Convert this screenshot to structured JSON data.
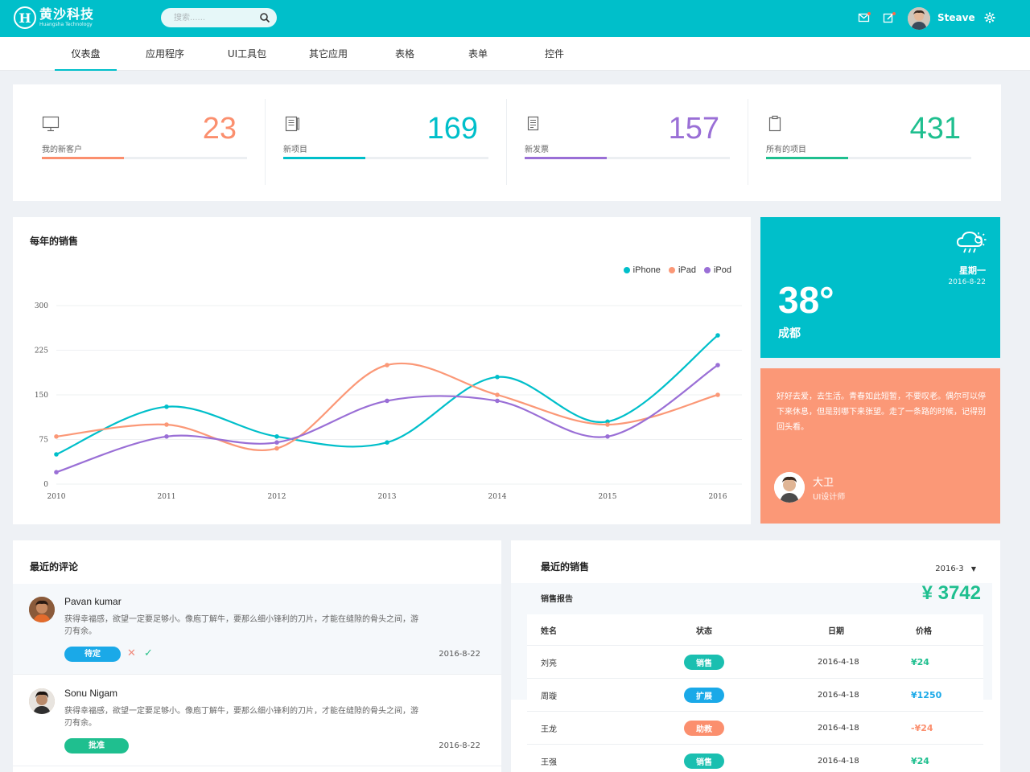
{
  "header": {
    "logo_mark": "H",
    "logo_title": "黄沙科技",
    "logo_sub": "Huangsha Technology",
    "search_placeholder": "搜索......",
    "username": "Steave"
  },
  "nav": {
    "items": [
      {
        "label": "仪表盘",
        "active": true
      },
      {
        "label": "应用程序"
      },
      {
        "label": "UI工具包"
      },
      {
        "label": "其它应用"
      },
      {
        "label": "表格"
      },
      {
        "label": "表单"
      },
      {
        "label": "控件"
      }
    ]
  },
  "stats": [
    {
      "label": "我的新客户",
      "value": "23",
      "color": "#fb8f6e",
      "progress": 0.4,
      "icon": "monitor-icon"
    },
    {
      "label": "新项目",
      "value": "169",
      "color": "#00bfca",
      "progress": 0.4,
      "icon": "notebook-icon"
    },
    {
      "label": "新发票",
      "value": "157",
      "color": "#9a6fd6",
      "progress": 0.4,
      "icon": "invoice-icon"
    },
    {
      "label": "所有的项目",
      "value": "431",
      "color": "#1fbf8f",
      "progress": 0.4,
      "icon": "clipboard-icon"
    }
  ],
  "chart": {
    "title": "每年的销售"
  },
  "chart_data": {
    "type": "line",
    "title": "每年的销售",
    "x": [
      "2010",
      "2011",
      "2012",
      "2013",
      "2014",
      "2015",
      "2016"
    ],
    "yticks": [
      "0",
      "75",
      "150",
      "225",
      "300"
    ],
    "ylim": [
      0,
      300
    ],
    "grid": true,
    "legend_position": "top-right",
    "series": [
      {
        "name": "iPhone",
        "color": "#00bfca",
        "values": [
          50,
          130,
          80,
          70,
          180,
          105,
          250
        ]
      },
      {
        "name": "iPad",
        "color": "#fb9877",
        "values": [
          80,
          100,
          60,
          200,
          150,
          100,
          150
        ]
      },
      {
        "name": "iPod",
        "color": "#9a6fd6",
        "values": [
          20,
          80,
          70,
          140,
          140,
          80,
          200
        ]
      }
    ]
  },
  "weather": {
    "day": "星期一",
    "date": "2016-8-22",
    "temp": "38°",
    "city": "成都",
    "icon": "cloud-sun-icon"
  },
  "quote": {
    "text": "好好去爱，去生活。青春如此短暂，不要叹老。偶尔可以停下来休息，但是别哪下来张望。走了一条路的时候，记得别回头看。",
    "name": "大卫",
    "role": "UI设计师"
  },
  "comments": {
    "title": "最近的评论",
    "items": [
      {
        "name": "Pavan kumar",
        "text": "获得幸福感，欲望一定要足够小。像庖丁解牛，要那么细小锋利的刀片，才能在缝隙的骨头之间，游刃有余。",
        "badge": "待定",
        "badge_color": "#1aa9e8",
        "date": "2016-8-22",
        "actions": true
      },
      {
        "name": "Sonu Nigam",
        "text": "获得幸福感，欲望一定要足够小。像庖丁解牛，要那么细小锋利的刀片，才能在缝隙的骨头之间，游刃有余。",
        "badge": "批准",
        "badge_color": "#1fbf8f",
        "date": "2016-8-22",
        "actions": false
      }
    ]
  },
  "sales": {
    "title": "最近的销售",
    "month": "2016-3",
    "report_label": "销售报告",
    "total": "¥ 3742",
    "headers": [
      "姓名",
      "状态",
      "日期",
      "价格"
    ],
    "rows": [
      {
        "name": "刘亮",
        "status": "销售",
        "status_color": "#1abfb0",
        "date": "2016-4-18",
        "price": "¥24",
        "price_color": "#1fbf8f"
      },
      {
        "name": "周璇",
        "status": "扩展",
        "status_color": "#1aa9e8",
        "date": "2016-4-18",
        "price": "¥1250",
        "price_color": "#1aa9e8"
      },
      {
        "name": "王龙",
        "status": "助教",
        "status_color": "#fb8f6e",
        "date": "2016-4-18",
        "price": "-¥24",
        "price_color": "#fb8f6e"
      },
      {
        "name": "王强",
        "status": "销售",
        "status_color": "#1abfb0",
        "date": "2016-4-18",
        "price": "¥24",
        "price_color": "#1fbf8f"
      }
    ]
  }
}
